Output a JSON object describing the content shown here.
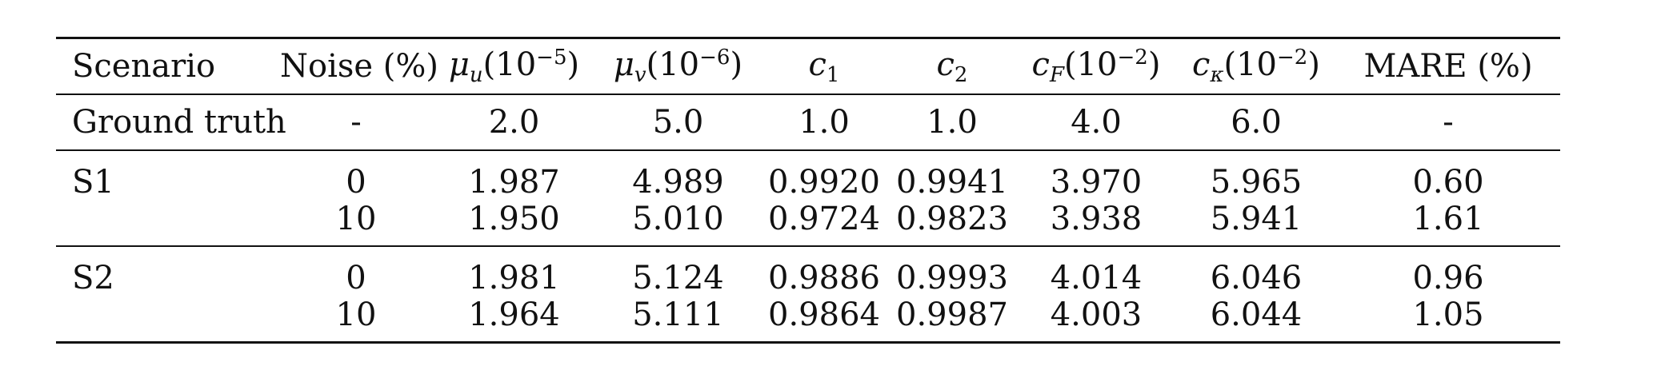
{
  "table": {
    "headers": {
      "scenario": "Scenario",
      "noise": "Noise (%)",
      "mu_u": {
        "sym": "μ",
        "sub": "u",
        "base": "(10",
        "exp": "−5",
        "close": ")"
      },
      "mu_v": {
        "sym": "μ",
        "sub": "v",
        "base": "(10",
        "exp": "−6",
        "close": ")"
      },
      "c1": {
        "sym": "c",
        "sub": "1"
      },
      "c2": {
        "sym": "c",
        "sub": "2"
      },
      "cF": {
        "sym": "c",
        "sub": "F",
        "base": "(10",
        "exp": "−2",
        "close": ")"
      },
      "ck": {
        "sym": "c",
        "sub": "κ",
        "base": "(10",
        "exp": "−2",
        "close": ")"
      },
      "mare": "MARE (%)"
    },
    "ground_truth": {
      "label": "Ground truth",
      "values": [
        "-",
        "2.0",
        "5.0",
        "1.0",
        "1.0",
        "4.0",
        "6.0",
        "-"
      ]
    },
    "groups": [
      {
        "scenario": "S1",
        "rows": [
          [
            "0",
            "1.987",
            "4.989",
            "0.9920",
            "0.9941",
            "3.970",
            "5.965",
            "0.60"
          ],
          [
            "10",
            "1.950",
            "5.010",
            "0.9724",
            "0.9823",
            "3.938",
            "5.941",
            "1.61"
          ]
        ]
      },
      {
        "scenario": "S2",
        "rows": [
          [
            "0",
            "1.981",
            "5.124",
            "0.9886",
            "0.9993",
            "4.014",
            "6.046",
            "0.96"
          ],
          [
            "10",
            "1.964",
            "5.111",
            "0.9864",
            "0.9987",
            "4.003",
            "6.044",
            "1.05"
          ]
        ]
      }
    ]
  }
}
